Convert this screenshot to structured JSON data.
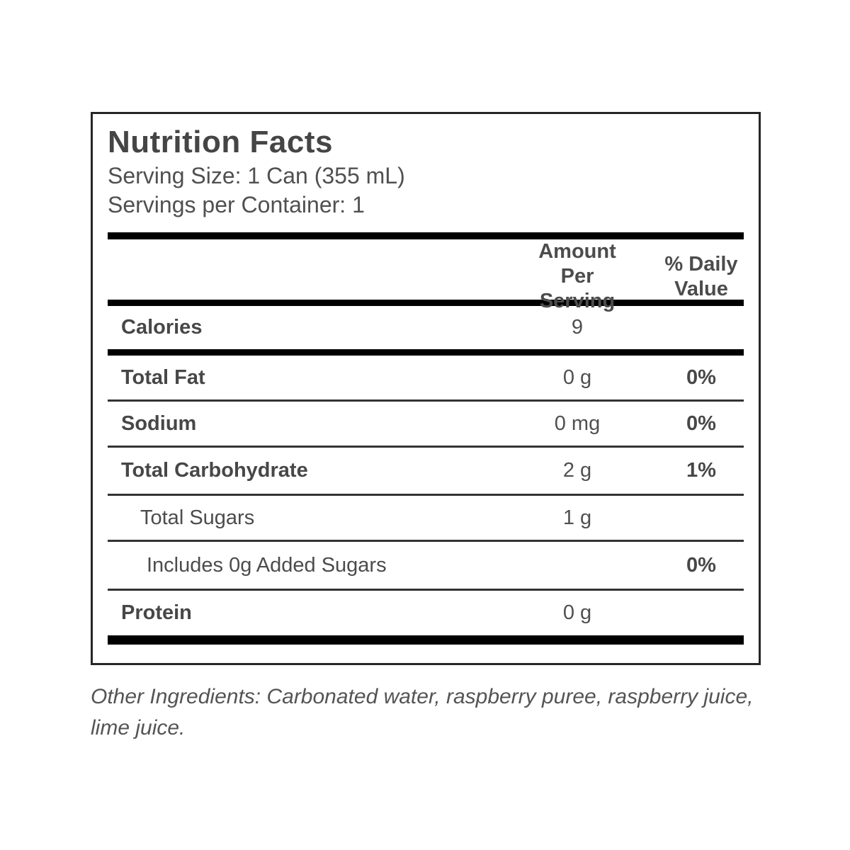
{
  "nutrition_label": {
    "title": "Nutrition Facts",
    "serving_size": "Serving Size: 1 Can (355 mL)",
    "servings_per_container": "Servings per Container: 1",
    "column_headers": {
      "amount_per_serving": "Amount Per\nServing",
      "percent_daily_value": "% Daily\nValue"
    },
    "rows": [
      {
        "label": "Calories",
        "amount": "9",
        "percent": ""
      },
      {
        "label": "Total Fat",
        "amount": "0 g",
        "percent": "0%"
      },
      {
        "label": "Sodium",
        "amount": "0 mg",
        "percent": "0%"
      },
      {
        "label": "Total Carbohydrate",
        "amount": "2 g",
        "percent": "1%"
      },
      {
        "label": "Total Sugars",
        "amount": "1 g",
        "percent": ""
      },
      {
        "label": "Includes 0g Added Sugars",
        "amount": "",
        "percent": "0%"
      },
      {
        "label": "Protein",
        "amount": "0 g",
        "percent": ""
      }
    ],
    "footnote": "Other Ingredients: Carbonated water, raspberry puree, raspberry juice, lime juice.",
    "colors": {
      "background": "#ffffff",
      "text": "#4f4f4f",
      "bold_text": "#474747",
      "thick_bar": "#000000",
      "thin_rule": "#333333",
      "border": "#262626"
    }
  }
}
